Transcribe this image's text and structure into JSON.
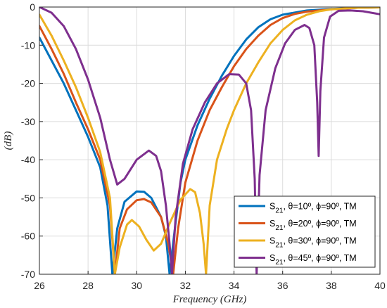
{
  "chart_data": {
    "type": "line",
    "title": "",
    "xlabel": "Frequency (GHz)",
    "ylabel": "(dB)",
    "xlim": [
      26,
      40
    ],
    "ylim": [
      -70,
      0
    ],
    "xticks": [
      "26",
      "28",
      "30",
      "32",
      "34",
      "36",
      "38",
      "40"
    ],
    "yticks": [
      "0",
      "-10",
      "-20",
      "-30",
      "-40",
      "-50",
      "-60",
      "-70"
    ],
    "grid": true,
    "legend_position": "bottom-right",
    "series": [
      {
        "name": "S21, θ=10º, ϕ=90º, TM",
        "legend": {
          "base": "S",
          "sub": "21",
          "rest": ", θ=10º, ϕ=90º, TM"
        },
        "color": "#0072BD",
        "points": [
          [
            26,
            -8
          ],
          [
            26.5,
            -14
          ],
          [
            27,
            -20
          ],
          [
            27.5,
            -27
          ],
          [
            28,
            -34
          ],
          [
            28.5,
            -42
          ],
          [
            28.8,
            -52
          ],
          [
            29.0,
            -70
          ],
          [
            29.2,
            -58
          ],
          [
            29.5,
            -51
          ],
          [
            30.0,
            -48.3
          ],
          [
            30.3,
            -48.4
          ],
          [
            30.6,
            -50
          ],
          [
            31.0,
            -55
          ],
          [
            31.2,
            -60
          ],
          [
            31.35,
            -70
          ],
          [
            31.55,
            -59
          ],
          [
            31.8,
            -46
          ],
          [
            32.0,
            -40
          ],
          [
            32.5,
            -31
          ],
          [
            33.0,
            -24
          ],
          [
            33.5,
            -18
          ],
          [
            34.0,
            -12.8
          ],
          [
            34.5,
            -8.5
          ],
          [
            35.0,
            -5.3
          ],
          [
            35.5,
            -3.2
          ],
          [
            36.0,
            -2.0
          ],
          [
            37.0,
            -0.9
          ],
          [
            38.0,
            -0.5
          ],
          [
            39.0,
            -0.2
          ],
          [
            40,
            -0.1
          ]
        ]
      },
      {
        "name": "S21, θ=20º, ϕ=90º, TM",
        "legend": {
          "base": "S",
          "sub": "21",
          "rest": ", θ=20º, ϕ=90º, TM"
        },
        "color": "#D95319",
        "points": [
          [
            26,
            -5
          ],
          [
            26.5,
            -11
          ],
          [
            27,
            -17.5
          ],
          [
            27.5,
            -25
          ],
          [
            28,
            -32
          ],
          [
            28.5,
            -40
          ],
          [
            28.9,
            -52
          ],
          [
            29.1,
            -70
          ],
          [
            29.3,
            -58
          ],
          [
            29.6,
            -53
          ],
          [
            30.0,
            -50.6
          ],
          [
            30.3,
            -50.3
          ],
          [
            30.6,
            -51.2
          ],
          [
            31.0,
            -55
          ],
          [
            31.3,
            -62
          ],
          [
            31.5,
            -70
          ],
          [
            31.7,
            -58
          ],
          [
            32.0,
            -46
          ],
          [
            32.5,
            -35
          ],
          [
            33.0,
            -27
          ],
          [
            33.5,
            -21
          ],
          [
            34.0,
            -15.5
          ],
          [
            34.5,
            -11
          ],
          [
            35.0,
            -7.5
          ],
          [
            35.5,
            -4.7
          ],
          [
            36.0,
            -2.9
          ],
          [
            36.5,
            -1.8
          ],
          [
            37.0,
            -1.2
          ],
          [
            38.0,
            -0.6
          ],
          [
            39.0,
            -0.2
          ],
          [
            40,
            -0.1
          ]
        ]
      },
      {
        "name": "S21, θ=30º, ϕ=90º, TM",
        "legend": {
          "base": "S",
          "sub": "21",
          "rest": ", θ=30º, ϕ=90º, TM"
        },
        "color": "#EDB120",
        "points": [
          [
            26,
            -2
          ],
          [
            26.5,
            -7.5
          ],
          [
            27,
            -14
          ],
          [
            27.5,
            -21
          ],
          [
            28,
            -29
          ],
          [
            28.5,
            -38
          ],
          [
            28.9,
            -50
          ],
          [
            29.1,
            -70
          ],
          [
            29.3,
            -63
          ],
          [
            29.6,
            -57
          ],
          [
            29.8,
            -55.8
          ],
          [
            30.1,
            -57.5
          ],
          [
            30.4,
            -61
          ],
          [
            30.7,
            -63.8
          ],
          [
            31.0,
            -62
          ],
          [
            31.4,
            -56
          ],
          [
            31.8,
            -50.5
          ],
          [
            32.2,
            -47.7
          ],
          [
            32.4,
            -48.5
          ],
          [
            32.6,
            -54
          ],
          [
            32.75,
            -62
          ],
          [
            32.85,
            -70
          ],
          [
            33.0,
            -52
          ],
          [
            33.3,
            -40
          ],
          [
            33.7,
            -32
          ],
          [
            34.0,
            -27
          ],
          [
            34.5,
            -20
          ],
          [
            35.0,
            -14.5
          ],
          [
            35.5,
            -9.5
          ],
          [
            36.0,
            -6
          ],
          [
            36.5,
            -3.5
          ],
          [
            37.0,
            -2
          ],
          [
            37.5,
            -1.1
          ],
          [
            38.0,
            -0.6
          ],
          [
            39.0,
            -0.2
          ],
          [
            40,
            -0.1
          ]
        ]
      },
      {
        "name": "S21, θ=45º, ϕ=90º, TM",
        "legend": {
          "base": "S",
          "sub": "21",
          "rest": ", θ=45º, ϕ=90º, TM"
        },
        "color": "#7E2F8E",
        "points": [
          [
            26,
            0
          ],
          [
            26.5,
            -1.5
          ],
          [
            27,
            -5
          ],
          [
            27.5,
            -11
          ],
          [
            28,
            -19
          ],
          [
            28.5,
            -29
          ],
          [
            28.9,
            -40
          ],
          [
            29.2,
            -46.5
          ],
          [
            29.5,
            -45
          ],
          [
            30.0,
            -40
          ],
          [
            30.5,
            -37.6
          ],
          [
            30.8,
            -39
          ],
          [
            31.0,
            -43
          ],
          [
            31.2,
            -52
          ],
          [
            31.35,
            -62
          ],
          [
            31.45,
            -70
          ],
          [
            31.6,
            -55
          ],
          [
            31.9,
            -41
          ],
          [
            32.3,
            -32
          ],
          [
            32.8,
            -25
          ],
          [
            33.3,
            -20
          ],
          [
            33.8,
            -17.6
          ],
          [
            34.2,
            -17.7
          ],
          [
            34.5,
            -20
          ],
          [
            34.7,
            -27
          ],
          [
            34.85,
            -45
          ],
          [
            34.93,
            -70
          ],
          [
            35.05,
            -44
          ],
          [
            35.3,
            -27
          ],
          [
            35.7,
            -16
          ],
          [
            36.1,
            -9.5
          ],
          [
            36.5,
            -6
          ],
          [
            36.9,
            -4.7
          ],
          [
            37.1,
            -5.5
          ],
          [
            37.3,
            -10
          ],
          [
            37.42,
            -25
          ],
          [
            37.48,
            -39
          ],
          [
            37.55,
            -22
          ],
          [
            37.7,
            -8
          ],
          [
            37.95,
            -2.5
          ],
          [
            38.3,
            -1
          ],
          [
            38.8,
            -0.9
          ],
          [
            39.3,
            -1.1
          ],
          [
            40,
            -1.9
          ]
        ]
      }
    ]
  }
}
